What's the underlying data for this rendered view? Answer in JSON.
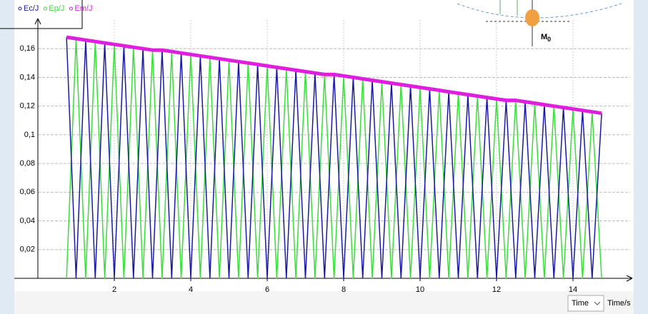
{
  "chart_data": {
    "type": "line",
    "x_label": "Time/s",
    "x": [
      0.75,
      1,
      1.25,
      1.5,
      1.75,
      2,
      2.25,
      2.5,
      2.75,
      3,
      3.25,
      3.5,
      3.75,
      4,
      4.25,
      4.5,
      4.75,
      5,
      5.25,
      5.5,
      5.75,
      6,
      6.25,
      6.5,
      6.75,
      7,
      7.25,
      7.5,
      7.75,
      8,
      8.25,
      8.5,
      8.75,
      9,
      9.25,
      9.5,
      9.75,
      10,
      10.25,
      10.5,
      10.75,
      11,
      11.25,
      11.5,
      11.75,
      12,
      12.25,
      12.5,
      12.75,
      13,
      13.25,
      13.5,
      13.75,
      14,
      14.25,
      14.5,
      14.75
    ],
    "series": [
      {
        "name": "Ec/J",
        "color": "#1a1aa6",
        "values": [
          0.168,
          0,
          0.166,
          0,
          0.164,
          0,
          0.162,
          0,
          0.16,
          0,
          0.159,
          0,
          0.157,
          0,
          0.155,
          0,
          0.153,
          0,
          0.151,
          0,
          0.149,
          0,
          0.147,
          0,
          0.145,
          0,
          0.143,
          0,
          0.142,
          0,
          0.14,
          0,
          0.138,
          0,
          0.136,
          0,
          0.134,
          0,
          0.132,
          0,
          0.13,
          0,
          0.128,
          0,
          0.126,
          0,
          0.124,
          0,
          0.123,
          0,
          0.121,
          0,
          0.119,
          0,
          0.117,
          0,
          0.115
        ]
      },
      {
        "name": "Ep/J",
        "color": "#3ade3a",
        "values": [
          0,
          0.167,
          0,
          0.165,
          0,
          0.163,
          0,
          0.161,
          0,
          0.159,
          0,
          0.158,
          0,
          0.156,
          0,
          0.154,
          0,
          0.152,
          0,
          0.15,
          0,
          0.148,
          0,
          0.146,
          0,
          0.144,
          0,
          0.142,
          0,
          0.141,
          0,
          0.139,
          0,
          0.137,
          0,
          0.135,
          0,
          0.133,
          0,
          0.131,
          0,
          0.129,
          0,
          0.127,
          0,
          0.125,
          0,
          0.124,
          0,
          0.122,
          0,
          0.12,
          0,
          0.118,
          0,
          0.116,
          0
        ]
      },
      {
        "name": "Em/J",
        "color": "#e01ee0",
        "values": [
          0.168,
          0.167,
          0.166,
          0.165,
          0.164,
          0.163,
          0.162,
          0.161,
          0.16,
          0.159,
          0.159,
          0.158,
          0.157,
          0.156,
          0.155,
          0.154,
          0.153,
          0.152,
          0.151,
          0.15,
          0.149,
          0.148,
          0.147,
          0.146,
          0.145,
          0.144,
          0.143,
          0.142,
          0.142,
          0.141,
          0.14,
          0.139,
          0.138,
          0.137,
          0.136,
          0.135,
          0.134,
          0.133,
          0.132,
          0.131,
          0.13,
          0.129,
          0.128,
          0.127,
          0.126,
          0.125,
          0.124,
          0.124,
          0.123,
          0.122,
          0.121,
          0.12,
          0.119,
          0.118,
          0.117,
          0.116,
          0.115
        ]
      }
    ],
    "xlim": [
      0,
      15.5
    ],
    "ylim": [
      0,
      0.18
    ],
    "xticks": [
      2,
      4,
      6,
      8,
      10,
      12,
      14
    ],
    "yticks": [
      {
        "value": 0.02,
        "label": "0,02"
      },
      {
        "value": 0.04,
        "label": "0,04"
      },
      {
        "value": 0.06,
        "label": "0,06"
      },
      {
        "value": 0.08,
        "label": "0,08"
      },
      {
        "value": 0.1,
        "label": "0,1"
      },
      {
        "value": 0.12,
        "label": "0,12"
      },
      {
        "value": 0.14,
        "label": "0,14"
      },
      {
        "value": 0.16,
        "label": "0,16"
      }
    ],
    "grid": true
  },
  "ui": {
    "dropdown": "Time",
    "inset": {
      "label": "M",
      "subscript": "0"
    }
  }
}
